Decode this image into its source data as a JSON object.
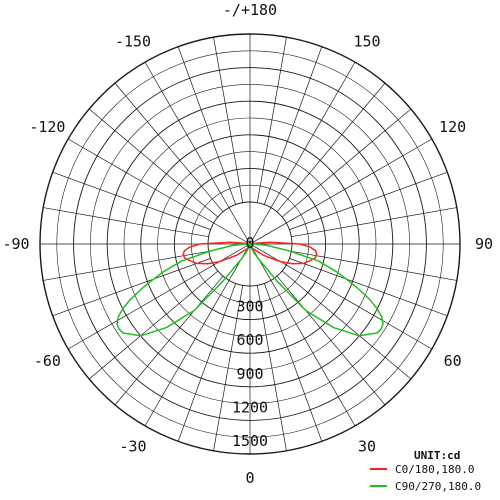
{
  "chart_data": {
    "type": "polar-line",
    "unit_label": "UNIT:cd",
    "angle_labels": [
      {
        "angle": 180,
        "text": "-/+180"
      },
      {
        "angle": 150,
        "text": "150"
      },
      {
        "angle": 120,
        "text": "120"
      },
      {
        "angle": 90,
        "text": "90"
      },
      {
        "angle": 60,
        "text": "60"
      },
      {
        "angle": 30,
        "text": "30"
      },
      {
        "angle": 0,
        "text": "0"
      },
      {
        "angle": -30,
        "text": "-30"
      },
      {
        "angle": -60,
        "text": "-60"
      },
      {
        "angle": -90,
        "text": "-90"
      },
      {
        "angle": -120,
        "text": "-120"
      },
      {
        "angle": -150,
        "text": "-150"
      }
    ],
    "ring_values": [
      0,
      300,
      600,
      900,
      1200,
      1500
    ],
    "radial_max": 1500,
    "spoke_step_deg": 10,
    "grid": true,
    "legend_position": "bottom-right",
    "series": [
      {
        "name": "C0/180,180.0",
        "color": "#ff2020",
        "points": [
          {
            "angle": 0,
            "value": 2
          },
          {
            "angle": 30,
            "value": 20
          },
          {
            "angle": 50,
            "value": 70
          },
          {
            "angle": 60,
            "value": 140
          },
          {
            "angle": 65,
            "value": 185
          },
          {
            "angle": 70,
            "value": 225
          },
          {
            "angle": 75,
            "value": 250
          },
          {
            "angle": 78,
            "value": 265
          },
          {
            "angle": 81,
            "value": 268
          },
          {
            "angle": 84,
            "value": 262
          },
          {
            "angle": 87,
            "value": 240
          },
          {
            "angle": 90,
            "value": 200
          },
          {
            "angle": 95,
            "value": 80
          },
          {
            "angle": 100,
            "value": 15
          },
          {
            "angle": 110,
            "value": 0
          },
          {
            "angle": 180,
            "value": 0
          },
          {
            "angle": -110,
            "value": 0
          },
          {
            "angle": -100,
            "value": 15
          },
          {
            "angle": -95,
            "value": 80
          },
          {
            "angle": -90,
            "value": 200
          },
          {
            "angle": -87,
            "value": 240
          },
          {
            "angle": -84,
            "value": 262
          },
          {
            "angle": -81,
            "value": 268
          },
          {
            "angle": -78,
            "value": 265
          },
          {
            "angle": -75,
            "value": 250
          },
          {
            "angle": -70,
            "value": 225
          },
          {
            "angle": -65,
            "value": 185
          },
          {
            "angle": -60,
            "value": 140
          },
          {
            "angle": -50,
            "value": 70
          },
          {
            "angle": -30,
            "value": 20
          },
          {
            "angle": 0,
            "value": 2
          }
        ]
      },
      {
        "name": "C90/270,180.0",
        "color": "#20c020",
        "points": [
          {
            "angle": 0,
            "value": 2
          },
          {
            "angle": 15,
            "value": 10
          },
          {
            "angle": 25,
            "value": 40
          },
          {
            "angle": 30,
            "value": 70
          },
          {
            "angle": 33,
            "value": 100
          },
          {
            "angle": 36,
            "value": 180
          },
          {
            "angle": 40,
            "value": 400
          },
          {
            "angle": 45,
            "value": 680
          },
          {
            "angle": 50,
            "value": 900
          },
          {
            "angle": 55,
            "value": 1010
          },
          {
            "angle": 57,
            "value": 1020
          },
          {
            "angle": 59,
            "value": 1010
          },
          {
            "angle": 61,
            "value": 970
          },
          {
            "angle": 63,
            "value": 900
          },
          {
            "angle": 65,
            "value": 810
          },
          {
            "angle": 68,
            "value": 650
          },
          {
            "angle": 72,
            "value": 450
          },
          {
            "angle": 76,
            "value": 280
          },
          {
            "angle": 80,
            "value": 160
          },
          {
            "angle": 85,
            "value": 70
          },
          {
            "angle": 90,
            "value": 20
          },
          {
            "angle": 100,
            "value": 0
          },
          {
            "angle": 180,
            "value": 0
          },
          {
            "angle": -100,
            "value": 0
          },
          {
            "angle": -90,
            "value": 20
          },
          {
            "angle": -85,
            "value": 70
          },
          {
            "angle": -80,
            "value": 160
          },
          {
            "angle": -76,
            "value": 280
          },
          {
            "angle": -72,
            "value": 450
          },
          {
            "angle": -68,
            "value": 650
          },
          {
            "angle": -65,
            "value": 810
          },
          {
            "angle": -63,
            "value": 900
          },
          {
            "angle": -61,
            "value": 970
          },
          {
            "angle": -59,
            "value": 1010
          },
          {
            "angle": -57,
            "value": 1020
          },
          {
            "angle": -55,
            "value": 1010
          },
          {
            "angle": -50,
            "value": 900
          },
          {
            "angle": -45,
            "value": 680
          },
          {
            "angle": -40,
            "value": 400
          },
          {
            "angle": -36,
            "value": 180
          },
          {
            "angle": -33,
            "value": 100
          },
          {
            "angle": -30,
            "value": 70
          },
          {
            "angle": -25,
            "value": 40
          },
          {
            "angle": -15,
            "value": 10
          },
          {
            "angle": 0,
            "value": 2
          }
        ]
      }
    ]
  }
}
